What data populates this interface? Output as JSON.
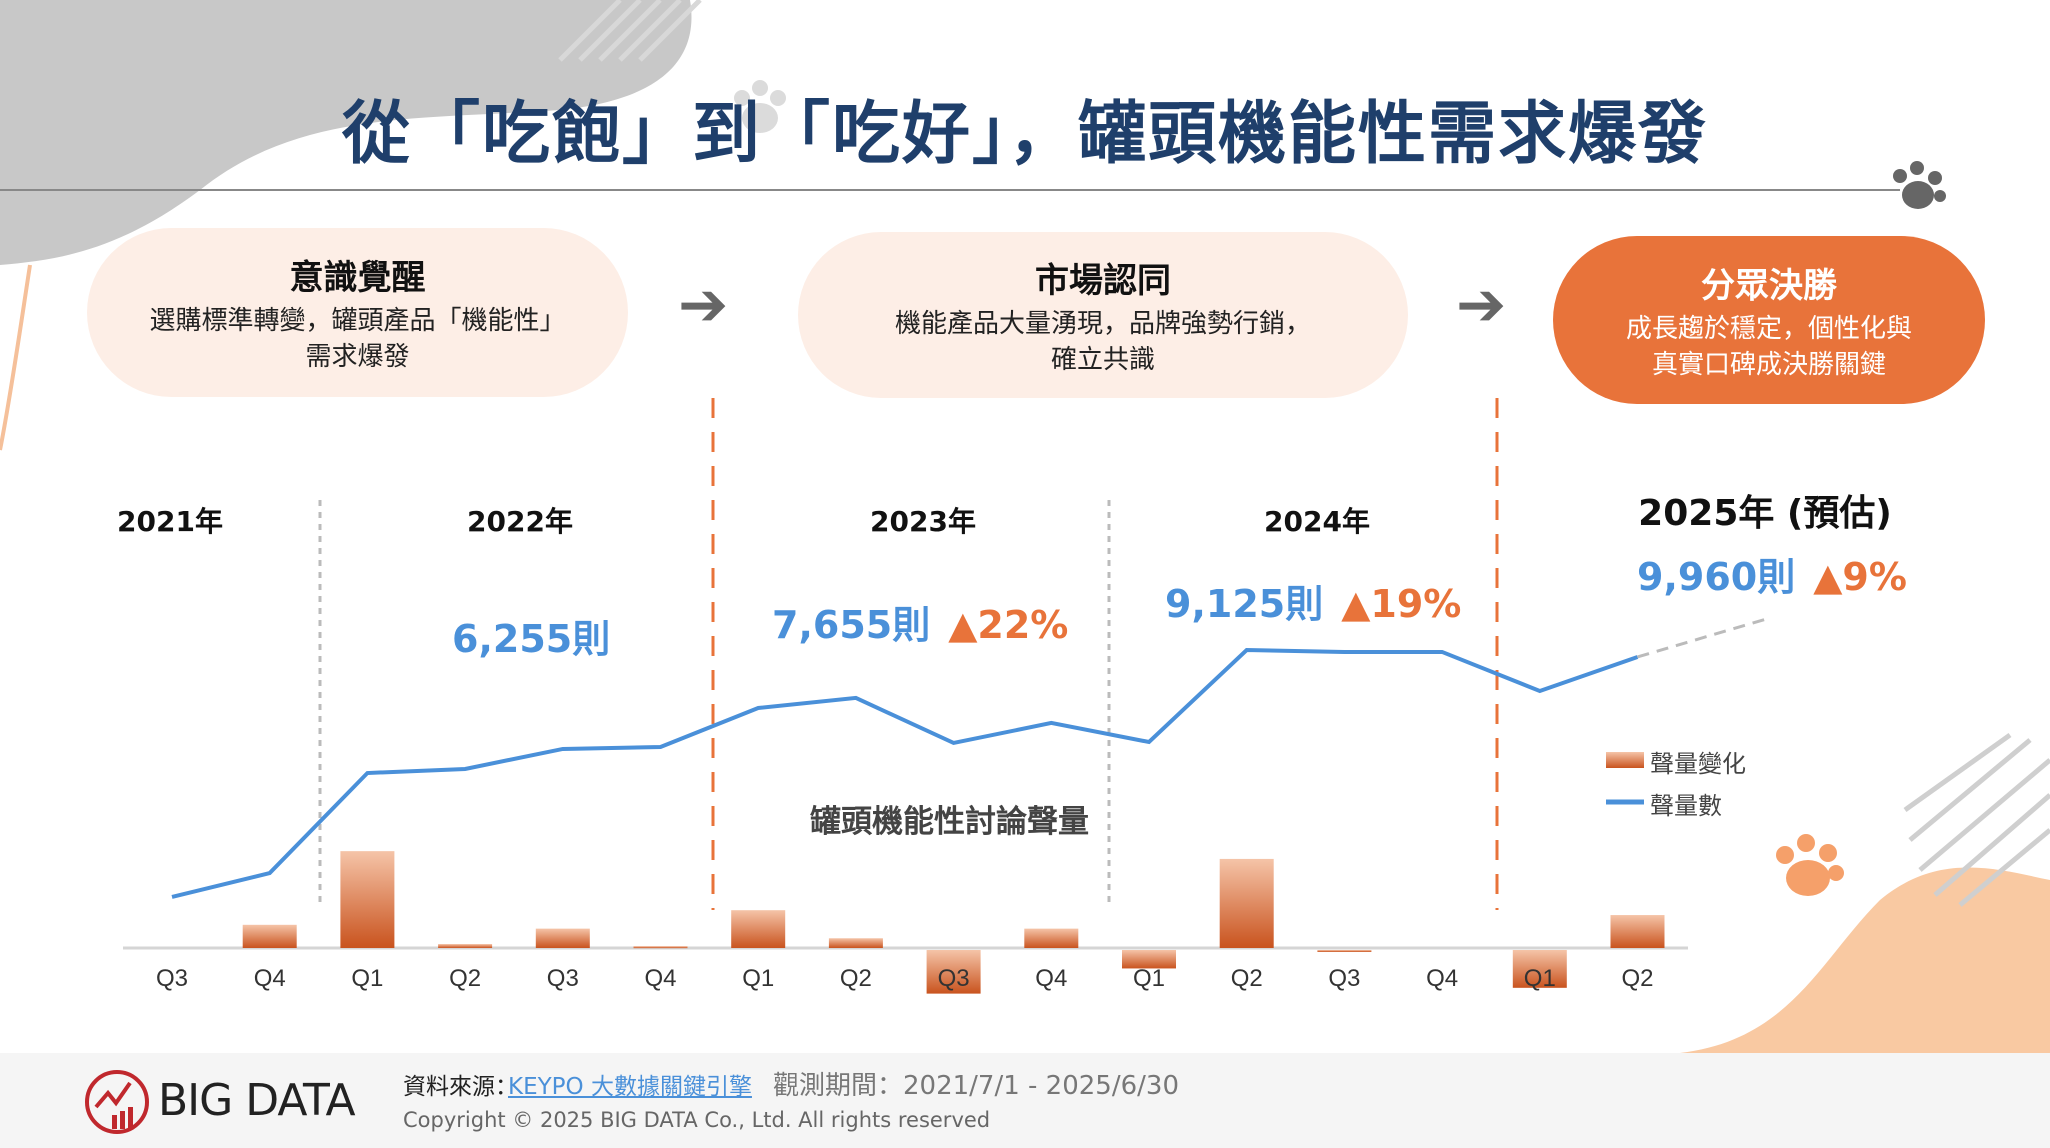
{
  "title": "從「吃飽」到「吃好」，罐頭機能性需求爆發",
  "stages": [
    {
      "heading": "意識覺醒",
      "desc_line1": "選購標準轉變，罐頭產品「機能性」",
      "desc_line2": "需求爆發"
    },
    {
      "heading": "市場認同",
      "desc_line1": "機能產品大量湧現，品牌強勢行銷，",
      "desc_line2": "確立共識"
    },
    {
      "heading": "分眾決勝",
      "desc_line1": "成長趨於穩定，個性化與",
      "desc_line2": "真實口碑成決勝關鍵"
    }
  ],
  "colors": {
    "title": "#1f3f6b",
    "line": "#4a90d9",
    "accent": "#e8733a",
    "bar_light": "#f5c4a8",
    "bar_dark": "#c9531e"
  },
  "chart_data": {
    "type": "bar+line",
    "title": "罐頭機能性討論聲量",
    "years": [
      "2021年",
      "2022年",
      "2023年",
      "2024年",
      "2025年 (預估)"
    ],
    "annual": [
      {
        "value": "6,255則",
        "growth": ""
      },
      {
        "value": "7,655則",
        "growth": "▲22%"
      },
      {
        "value": "9,125則",
        "growth": "▲19%"
      },
      {
        "value": "9,960則",
        "growth": "▲9%"
      }
    ],
    "categories": [
      "Q3",
      "Q4",
      "Q1",
      "Q2",
      "Q3",
      "Q4",
      "Q1",
      "Q2",
      "Q3",
      "Q4",
      "Q1",
      "Q2",
      "Q3",
      "Q4",
      "Q1",
      "Q2"
    ],
    "series": [
      {
        "name": "聲量數",
        "type": "line",
        "values": [
          426,
          626,
          1461,
          1495,
          1662,
          1678,
          2004,
          2088,
          1712,
          1879,
          1720,
          2488,
          2472,
          2472,
          2146,
          2430
        ],
        "forecast_next": 2750
      },
      {
        "name": "聲量變化",
        "type": "bar",
        "values": [
          0,
          200,
          835,
          34,
          167,
          16,
          326,
          84,
          -376,
          167,
          -159,
          768,
          -16,
          0,
          -326,
          284
        ]
      }
    ],
    "legend": [
      "聲量變化",
      "聲量數"
    ]
  },
  "footer": {
    "source_label": "資料來源：",
    "source_link": "KEYPO 大數據關鍵引擎",
    "period": "觀測期間：2021/7/1 - 2025/6/30",
    "copyright": "Copyright © 2025 BIG DATA Co., Ltd. All rights reserved",
    "logo": "BIG DATA"
  }
}
